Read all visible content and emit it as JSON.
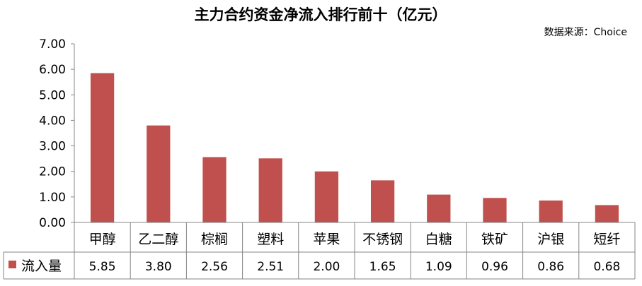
{
  "chart_data": {
    "type": "bar",
    "title": "主力合约资金净流入排行前十（亿元）",
    "source": "数据来源：Choice",
    "categories": [
      "甲醇",
      "乙二醇",
      "棕榈",
      "塑料",
      "苹果",
      "不锈钢",
      "白糖",
      "铁矿",
      "沪银",
      "短纤"
    ],
    "series": [
      {
        "name": "流入量",
        "values": [
          5.85,
          3.8,
          2.56,
          2.51,
          2.0,
          1.65,
          1.09,
          0.96,
          0.86,
          0.68
        ]
      }
    ],
    "value_labels": [
      "5.85",
      "3.80",
      "2.56",
      "2.51",
      "2.00",
      "1.65",
      "1.09",
      "0.96",
      "0.86",
      "0.68"
    ],
    "ylim": [
      0,
      7
    ],
    "yticks": [
      "0.00",
      "1.00",
      "2.00",
      "3.00",
      "4.00",
      "5.00",
      "6.00",
      "7.00"
    ],
    "grid": false,
    "legend": "data-table-left",
    "bar_color": "#c0504d",
    "axis_color": "#868686"
  }
}
